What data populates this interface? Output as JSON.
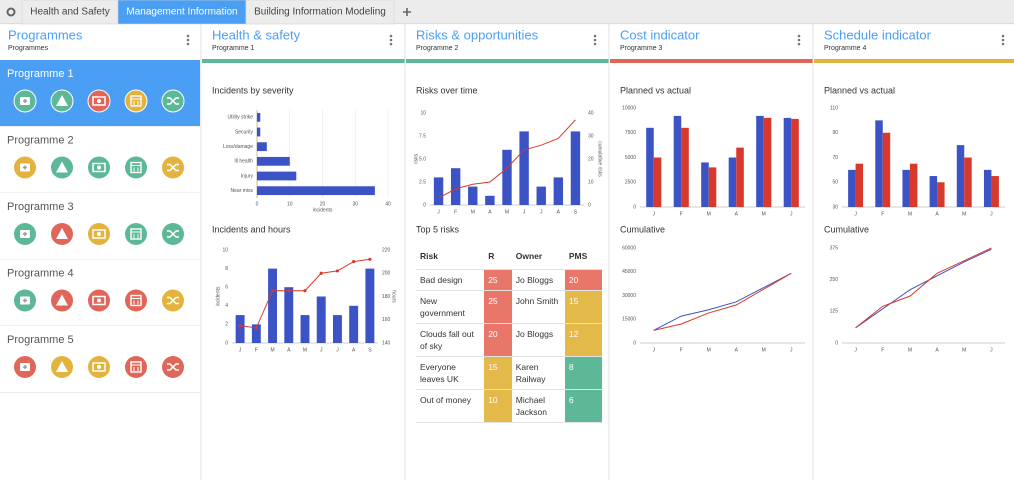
{
  "tabs": [
    "Health and Safety",
    "Management Information",
    "Building Information Modeling"
  ],
  "active_tab": 1,
  "sidebar": {
    "title": "Programmes",
    "subtitle": "Programmes",
    "selected": 0,
    "programmes": [
      {
        "name": "Programme 1",
        "status": [
          "#5cb897",
          "#5cb897",
          "#e0665a",
          "#e3b33d",
          "#5cb897"
        ]
      },
      {
        "name": "Programme 2",
        "status": [
          "#e3b33d",
          "#5cb897",
          "#5cb897",
          "#5cb897",
          "#e3b33d"
        ]
      },
      {
        "name": "Programme 3",
        "status": [
          "#5cb897",
          "#e0665a",
          "#e3b33d",
          "#5cb897",
          "#5cb897"
        ]
      },
      {
        "name": "Programme 4",
        "status": [
          "#5cb897",
          "#e0665a",
          "#e0665a",
          "#e0665a",
          "#e3b33d"
        ]
      },
      {
        "name": "Programme 5",
        "status": [
          "#e0665a",
          "#e3b33d",
          "#e3b33d",
          "#e0665a",
          "#e0665a"
        ]
      }
    ]
  },
  "panels": [
    {
      "title": "Health & safety",
      "subtitle": "Programme 1",
      "color": "#5cb897"
    },
    {
      "title": "Risks & opportunities",
      "subtitle": "Programme 2",
      "color": "#5cb897"
    },
    {
      "title": "Cost indicator",
      "subtitle": "Programme 3",
      "color": "#e0665a"
    },
    {
      "title": "Schedule indicator",
      "subtitle": "Programme 4",
      "color": "#e3b33d"
    }
  ],
  "chart_data": [
    {
      "type": "hbar",
      "title": "Incidents by severity",
      "categories": [
        "Utility strike",
        "Security",
        "Loss/damage",
        "Ill health",
        "Injury",
        "Near miss"
      ],
      "values": [
        1,
        1,
        3,
        10,
        12,
        36
      ],
      "color": "#3b53c4",
      "xlim": [
        0,
        40
      ],
      "xticks": [
        0,
        10,
        20,
        30,
        40
      ],
      "xlabel": "incidents",
      "grid": true
    },
    {
      "type": "combo",
      "title": "Incidents and hours",
      "categories": [
        "J",
        "F",
        "M",
        "A",
        "M",
        "J",
        "J",
        "A",
        "S"
      ],
      "series": [
        {
          "color": "#3b53c4",
          "kind": "bar",
          "values": [
            3,
            2,
            8,
            6,
            3,
            5,
            3,
            4,
            8
          ]
        },
        {
          "color": "#d9392c",
          "kind": "line",
          "markers": true,
          "axis": "y2",
          "values": [
            155,
            153,
            185,
            185,
            185,
            200,
            202,
            210,
            212
          ]
        }
      ],
      "ylim": [
        0,
        10
      ],
      "yticks": [
        0,
        2,
        4,
        6,
        8,
        10
      ],
      "y2lim": [
        140,
        220
      ],
      "y2ticks": [
        140,
        160,
        180,
        200,
        220
      ],
      "ylabel": "incidents",
      "y2label": "hours"
    },
    {
      "type": "combo",
      "title": "Risks over time",
      "categories": [
        "J",
        "F",
        "M",
        "A",
        "M",
        "J",
        "J",
        "A",
        "S"
      ],
      "series": [
        {
          "color": "#3b53c4",
          "kind": "bar",
          "values": [
            3,
            4,
            2,
            1,
            6,
            8,
            2,
            3,
            8
          ]
        },
        {
          "color": "#d9392c",
          "kind": "line",
          "axis": "y2",
          "values": [
            3,
            7,
            9,
            10,
            16,
            24,
            26,
            29,
            37
          ]
        }
      ],
      "ylim": [
        0,
        10
      ],
      "yticks": [
        0,
        2.5,
        {
          "value": 5,
          "label": "5.0"
        },
        7.5,
        10
      ],
      "y2lim": [
        0,
        40
      ],
      "y2ticks": [
        0,
        10,
        20,
        30,
        40
      ],
      "ylabel": "risks",
      "y2label": "cumulative risks"
    },
    {
      "type": "combo",
      "title": "Planned vs actual",
      "categories": [
        "J",
        "F",
        "M",
        "A",
        "M",
        "J"
      ],
      "series": [
        {
          "color": "#3b53c4",
          "kind": "bar",
          "values": [
            8000,
            9200,
            4500,
            5000,
            9200,
            9000
          ]
        },
        {
          "color": "#d9392c",
          "kind": "bar",
          "values": [
            5000,
            8000,
            4000,
            6000,
            9000,
            8900
          ]
        }
      ],
      "ylim": [
        0,
        10000
      ],
      "yticks": [
        0,
        2500,
        5000,
        7500,
        10000
      ]
    },
    {
      "type": "combo",
      "title": "Cumulative",
      "categories": [
        "J",
        "F",
        "M",
        "A",
        "M",
        "J"
      ],
      "series": [
        {
          "color": "#3b53c4",
          "kind": "line",
          "values": [
            8000,
            17000,
            21000,
            26000,
            35000,
            44000
          ]
        },
        {
          "color": "#d9392c",
          "kind": "line",
          "values": [
            8000,
            12000,
            19000,
            24000,
            34000,
            44000
          ]
        }
      ],
      "ylim": [
        0,
        60000
      ],
      "yticks": [
        0,
        15000,
        30000,
        45000,
        60000
      ]
    },
    {
      "type": "combo",
      "title": "Planned vs actual",
      "categories": [
        "J",
        "F",
        "M",
        "A",
        "M",
        "J"
      ],
      "series": [
        {
          "color": "#3b53c4",
          "kind": "bar",
          "values": [
            60,
            100,
            60,
            55,
            80,
            60
          ]
        },
        {
          "color": "#d9392c",
          "kind": "bar",
          "values": [
            65,
            90,
            65,
            50,
            70,
            55
          ]
        }
      ],
      "ylim": [
        30,
        110
      ],
      "yticks": [
        30,
        50,
        70,
        90,
        110
      ]
    },
    {
      "type": "combo",
      "title": "Cumulative",
      "categories": [
        "J",
        "F",
        "M",
        "A",
        "M",
        "J"
      ],
      "series": [
        {
          "color": "#3b53c4",
          "kind": "line",
          "values": [
            60,
            135,
            210,
            265,
            320,
            370
          ]
        },
        {
          "color": "#d9392c",
          "kind": "line",
          "values": [
            60,
            145,
            185,
            275,
            325,
            375
          ]
        }
      ],
      "ylim": [
        0,
        375
      ],
      "yticks": [
        0,
        125,
        250,
        375
      ]
    }
  ],
  "table": {
    "title": "Top 5 risks",
    "header": [
      "Risk",
      "R",
      "Owner",
      "PMS"
    ],
    "rows": [
      [
        "Bad design",
        25,
        "Jo Bloggs",
        20
      ],
      [
        "New government",
        25,
        "John Smith",
        15
      ],
      [
        "Clouds fall out of sky",
        20,
        "Jo Bloggs",
        12
      ],
      [
        "Everyone leaves UK",
        15,
        "Karen Railway",
        8
      ],
      [
        "Out of money",
        10,
        "Michael Jackson",
        6
      ]
    ],
    "cell_colors": [
      [
        "#e8776a",
        "#e8776a"
      ],
      [
        "#e8776a",
        "#e3b94a"
      ],
      [
        "#e8776a",
        "#e3b94a"
      ],
      [
        "#e3b94a",
        "#5cb897"
      ],
      [
        "#e3b94a",
        "#5cb897"
      ]
    ]
  }
}
